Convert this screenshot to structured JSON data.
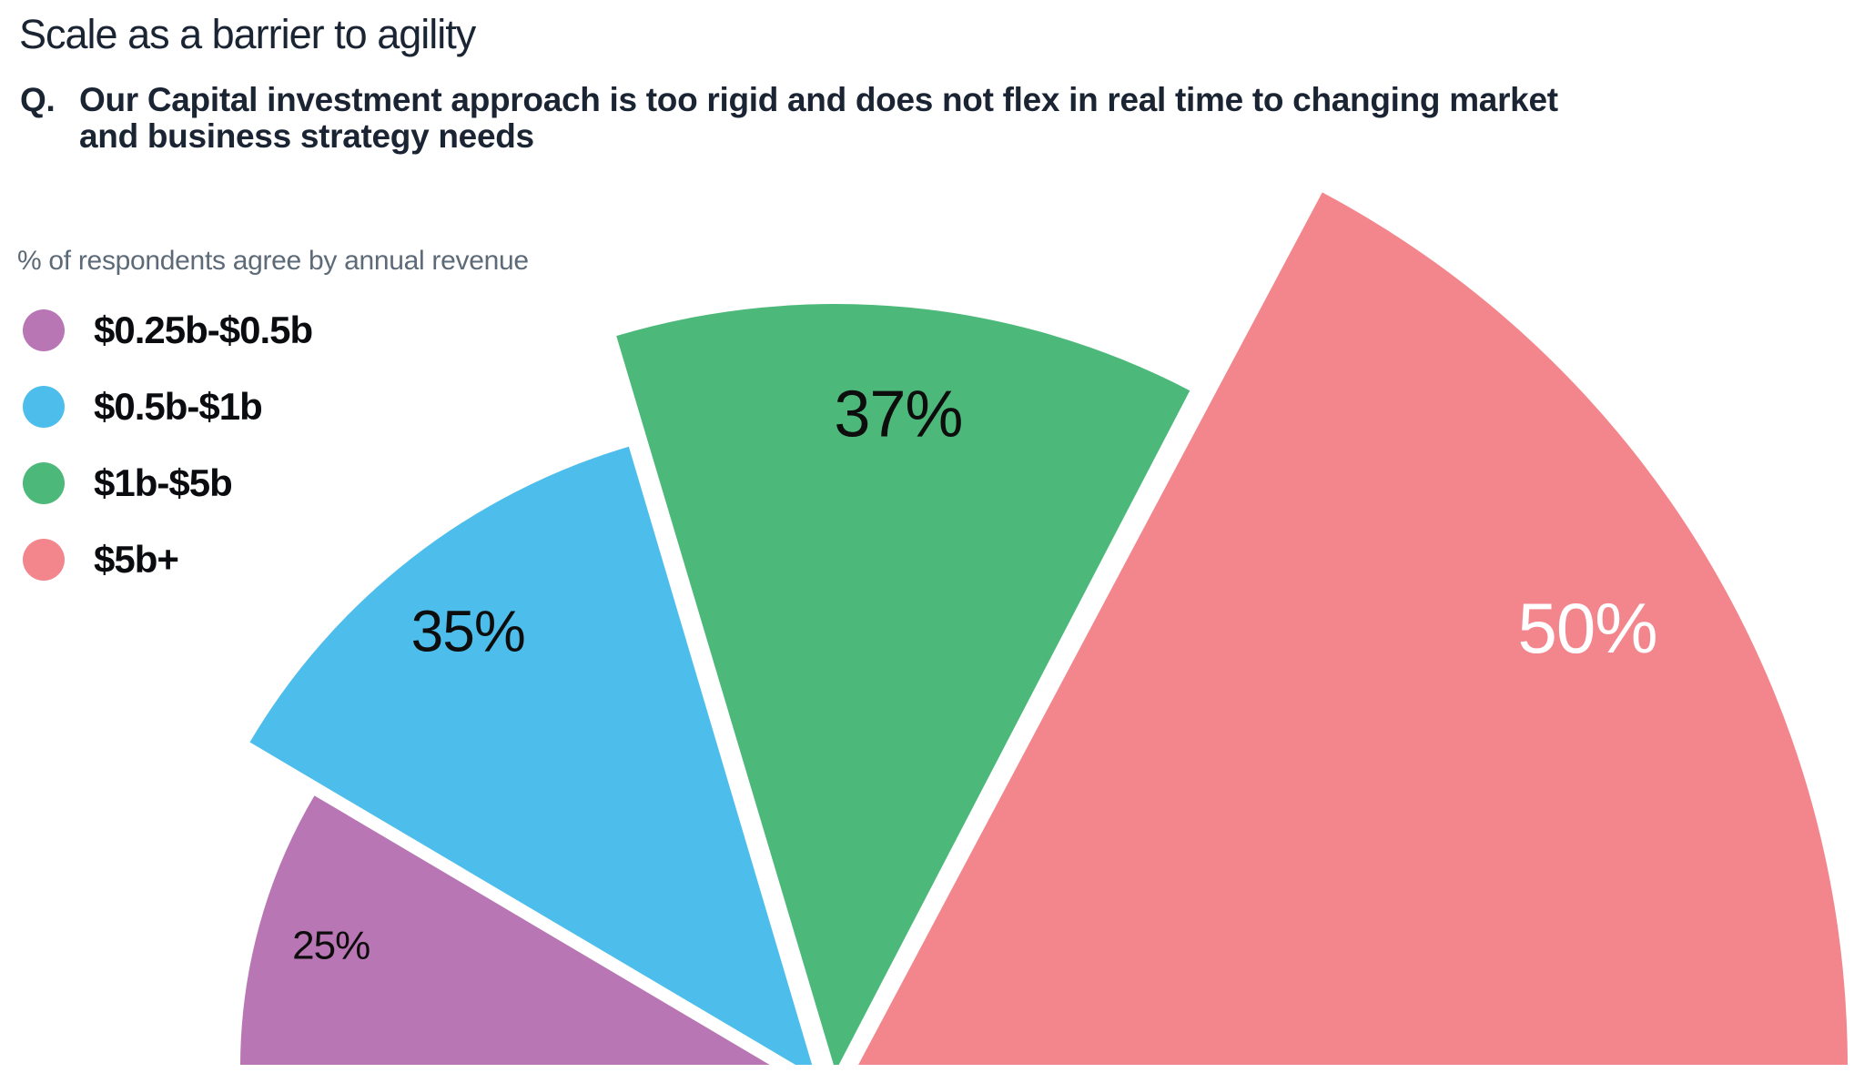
{
  "header": {
    "title": "Scale as a barrier to agility",
    "question_prefix": "Q.",
    "question_lines": [
      "Our Capital investment approach is too rigid and does not flex in real time to changing market",
      "and business strategy needs"
    ]
  },
  "legend": {
    "subtitle": "% of respondents agree by annual revenue",
    "items": [
      {
        "label": "$0.25b-$0.5b",
        "color": "#b876b4"
      },
      {
        "label": "$0.5b-$1b",
        "color": "#4dbeeb"
      },
      {
        "label": "$1b-$5b",
        "color": "#4cb97b"
      },
      {
        "label": "$5b+",
        "color": "#f3868c"
      }
    ]
  },
  "chart_data": {
    "type": "pie",
    "variant": "half-rose-exploded",
    "title": "Scale as a barrier to agility",
    "subtitle": "% of respondents agree by annual revenue",
    "question": "Our Capital investment approach is too rigid and does not flex in real time to changing market and business strategy needs",
    "categories": [
      "$0.25b-$0.5b",
      "$0.5b-$1b",
      "$1b-$5b",
      "$5b+"
    ],
    "values": [
      25,
      35,
      37,
      50
    ],
    "unit": "%",
    "value_labels": [
      "25%",
      "35%",
      "37%",
      "50%"
    ],
    "colors": [
      "#b876b4",
      "#4dbeeb",
      "#4cb97b",
      "#f3868c"
    ],
    "value_label_colors": [
      "#0d0d0d",
      "#0d0d0d",
      "#0d0d0d",
      "#ffffff"
    ],
    "angle_span_degrees": 180,
    "legend_position": "left",
    "notes": "Half-circle rose chart; wedge angle and radius grow with value; slices separated by white gaps"
  },
  "colors": {
    "background": "#ffffff",
    "title_text": "#1a2433",
    "subtitle_text": "#5d6a77",
    "legend_text": "#0b0c10"
  }
}
